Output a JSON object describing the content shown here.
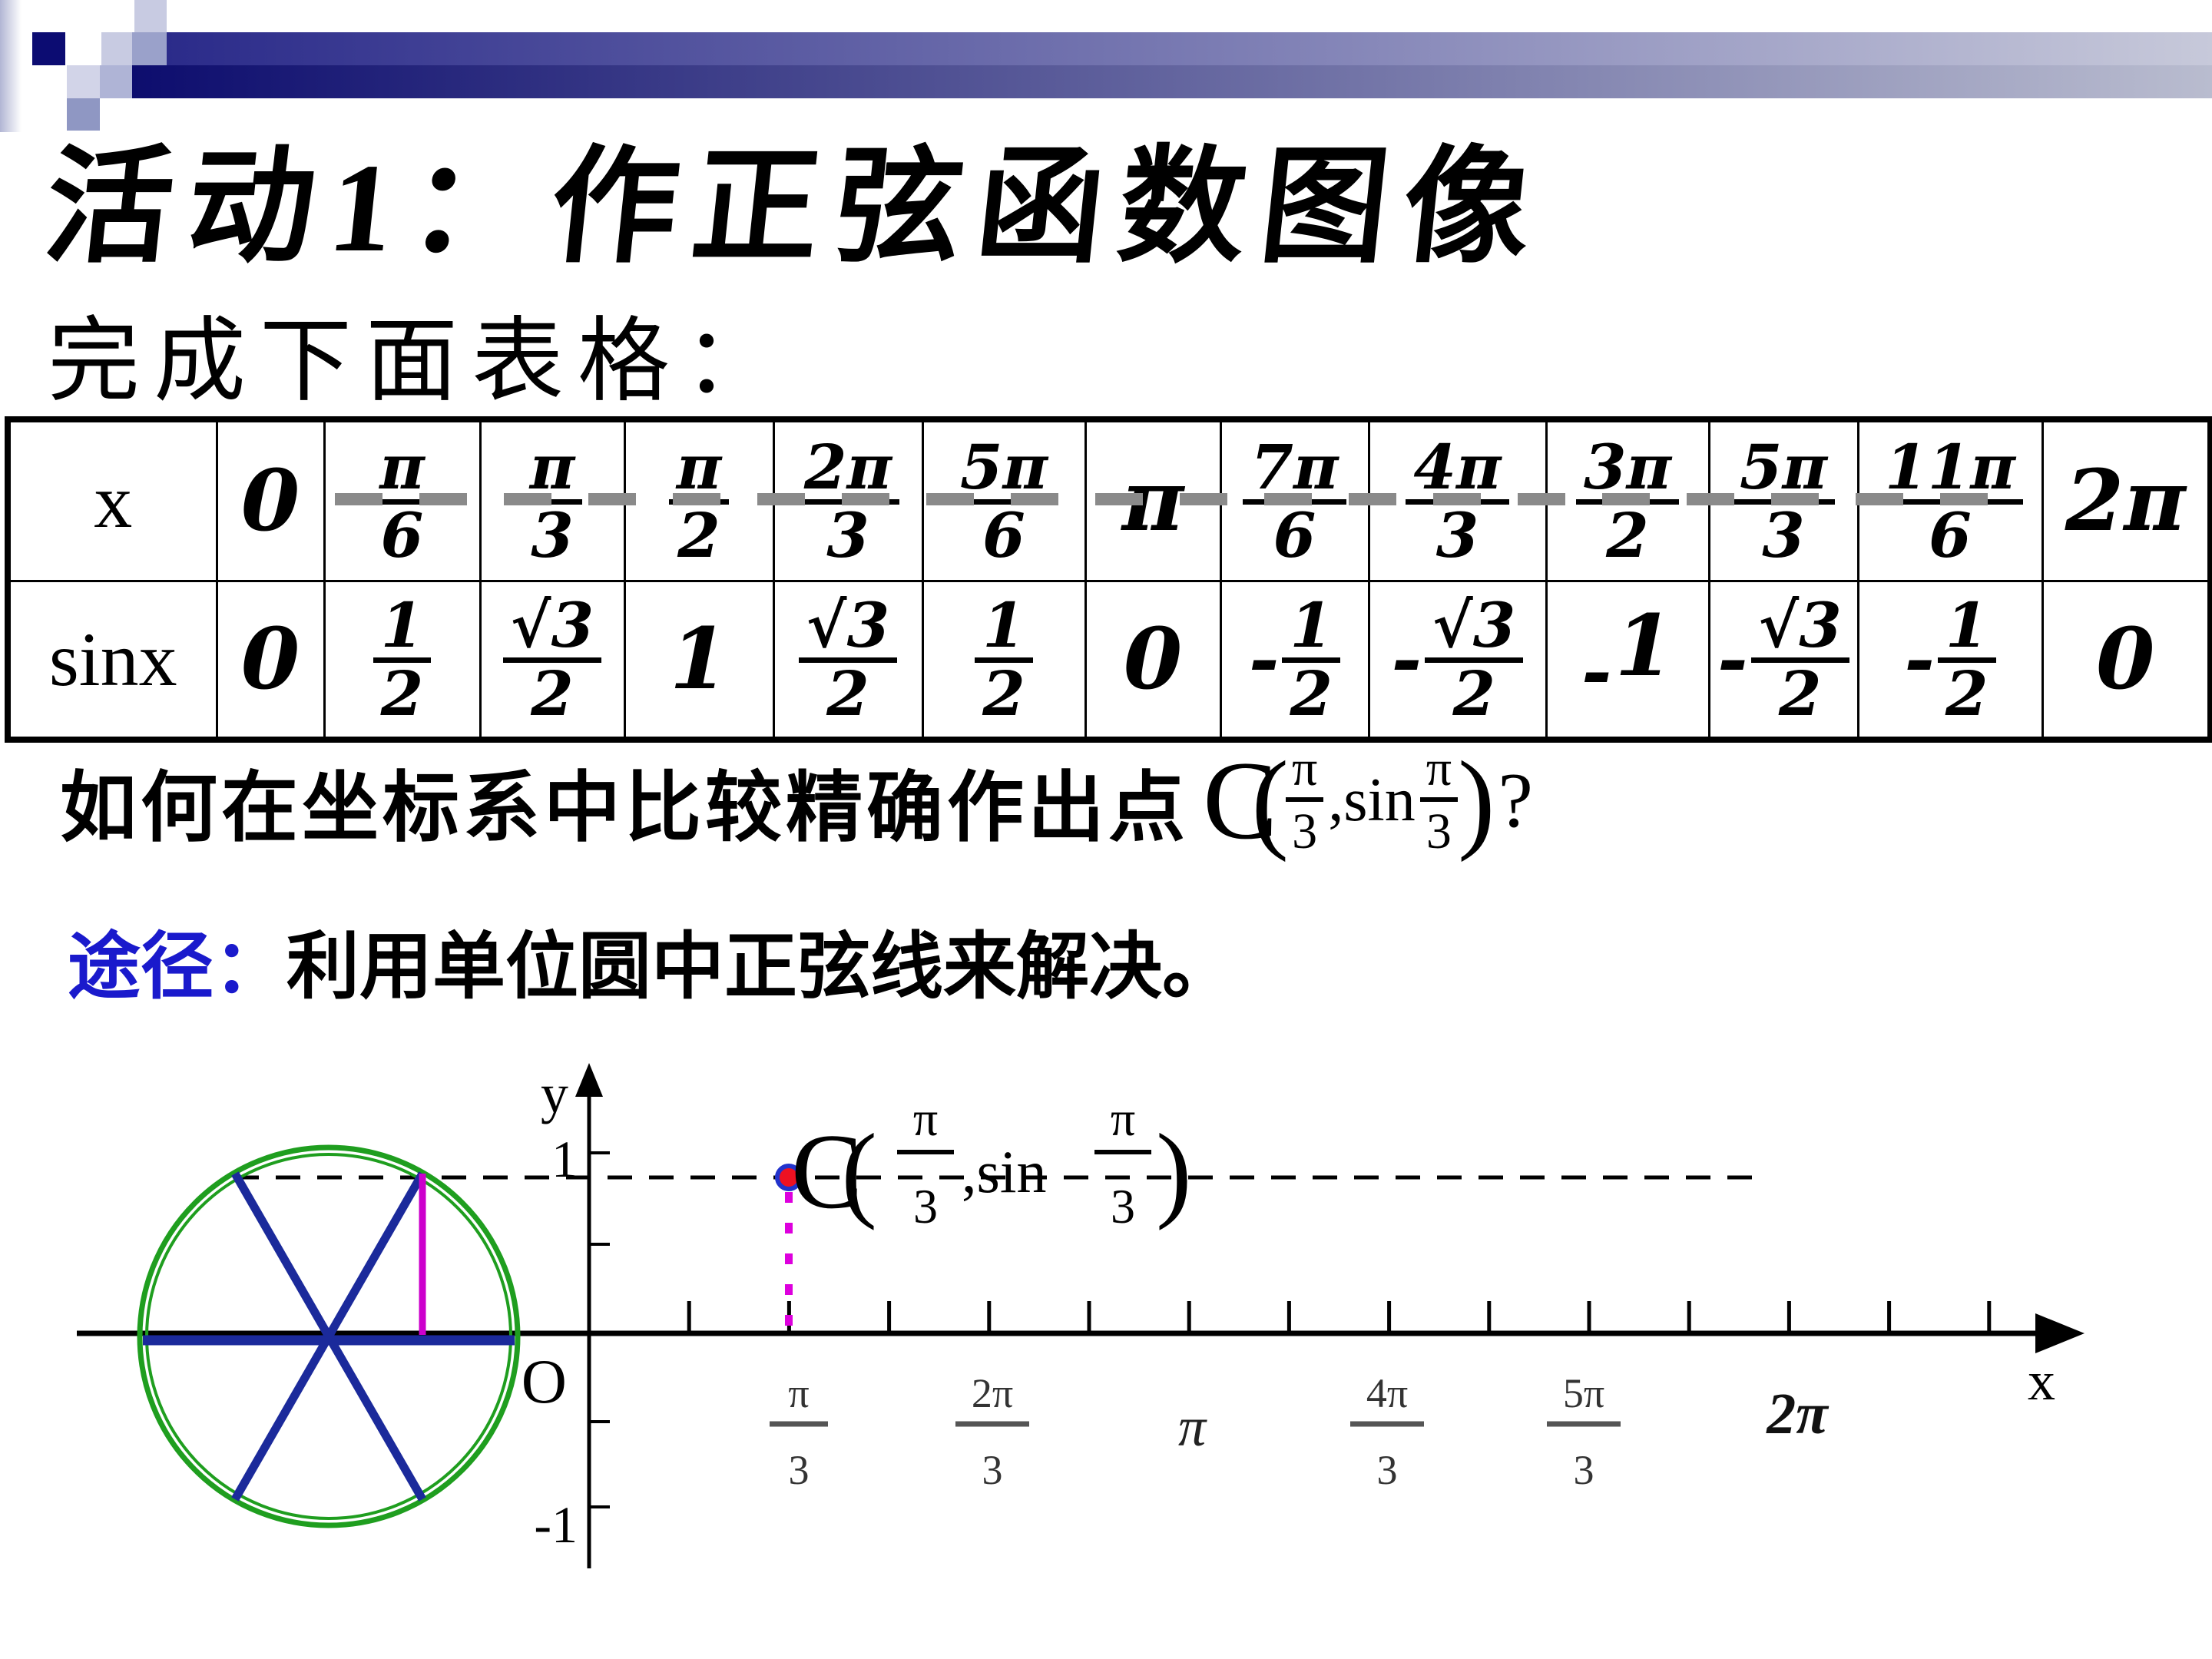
{
  "title": {
    "text": "活动1：作正弦函数图像"
  },
  "subtitle": {
    "text": "完成下面表格："
  },
  "table": {
    "row_headers": [
      "x",
      "sinx"
    ],
    "x_values": [
      "0",
      "π/6",
      "π/3",
      "π/2",
      "2π/3",
      "5π/6",
      "π",
      "7π/6",
      "4π/3",
      "3π/2",
      "5π/3",
      "11π/6",
      "2π"
    ],
    "sinx_values": [
      "0",
      "1/2",
      "√3/2",
      "1",
      "√3/2",
      "1/2",
      "0",
      "-1/2",
      "-√3/2",
      "-1",
      "-√3/2",
      "-1/2",
      "0"
    ]
  },
  "question": {
    "text": "如何在坐标系中比较精确作出点",
    "formula": {
      "open": "C(",
      "x_num": "π",
      "x_den": "3",
      "mid": ",sin",
      "y_num": "π",
      "y_den": "3",
      "close": ")",
      "qmark": "?"
    }
  },
  "approach": {
    "label": "途径：",
    "text": "利用单位圆中正弦线来解决。",
    "label_color": "#1a1acc"
  },
  "diagram": {
    "y_axis_label": "y",
    "x_axis_label": "x",
    "origin_label": "O",
    "y_tick_top": "1",
    "y_tick_bottom": "-1",
    "point_label": {
      "open": "C(",
      "x_num": "π",
      "x_den": "3",
      "mid": ",sin",
      "y_num": "π",
      "y_den": "3",
      "close": ")"
    },
    "x_labels": {
      "l1_num": "π",
      "l1_den": "3",
      "l2_num": "2π",
      "l2_den": "3",
      "l3": "π",
      "l4_num": "4π",
      "l4_den": "3",
      "l5_num": "5π",
      "l5_den": "3",
      "l6": "2π"
    },
    "colors": {
      "circle_green": "#1f9e1f",
      "diameter_navy": "#1b2a9b",
      "sine_line_magenta": "#cc00cc",
      "dotted_magenta": "#dd00dd",
      "point_fill_red": "#ee1122",
      "point_ring_blue": "#2233cc"
    }
  }
}
